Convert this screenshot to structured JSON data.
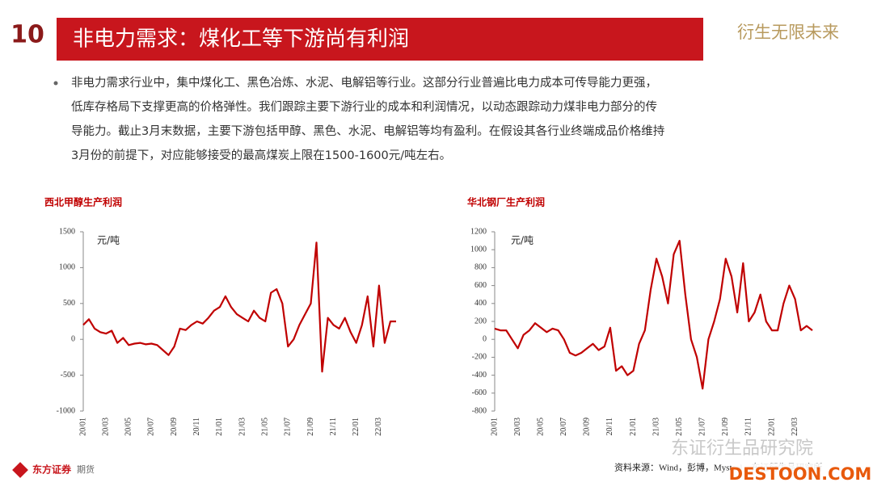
{
  "header": {
    "logo": "10",
    "title": "非电力需求：煤化工等下游尚有利润",
    "slogan": "衍生无限未来"
  },
  "bullet": [
    "非电力需求行业中，集中煤化工、黑色冶炼、水泥、电解铝等行业。这部分行业普遍比电力成本可传导能力更强，",
    "低库存格局下支撑更高的价格弹性。我们跟踪主要下游行业的成本和利润情况，以动态跟踪动力煤非电力部分的传",
    "导能力。截止3月末数据，主要下游包括甲醇、黑色、水泥、电解铝等均有盈利。在假设其各行业终端成品价格维持",
    "3月份的前提下，对应能够接受的最高煤炭上限在1500-1600元/吨左右。"
  ],
  "chart_data": [
    {
      "type": "line",
      "title": "西北甲醇生产利润",
      "unit_label": "元/吨",
      "color": "#c00000",
      "categories": [
        "20/01",
        null,
        null,
        null,
        "20/03",
        null,
        null,
        null,
        "20/05",
        null,
        null,
        null,
        "20/07",
        null,
        null,
        null,
        "20/09",
        null,
        null,
        null,
        "20/11",
        null,
        null,
        null,
        "21/01",
        null,
        null,
        null,
        "21/03",
        null,
        null,
        null,
        "21/05",
        null,
        null,
        null,
        "21/07",
        null,
        null,
        null,
        "21/09",
        null,
        null,
        null,
        "21/11",
        null,
        null,
        null,
        "22/01",
        null,
        null,
        null,
        "22/03",
        null,
        null,
        null
      ],
      "values": [
        200,
        280,
        150,
        100,
        80,
        120,
        -50,
        20,
        -80,
        -60,
        -50,
        -70,
        -60,
        -80,
        -150,
        -220,
        -100,
        150,
        130,
        200,
        250,
        220,
        300,
        400,
        450,
        600,
        450,
        350,
        300,
        250,
        400,
        300,
        250,
        650,
        700,
        500,
        -100,
        0,
        200,
        350,
        500,
        1350,
        -450,
        300,
        200,
        150,
        300,
        100,
        -50,
        200,
        600,
        -100,
        750,
        -50,
        250,
        250
      ],
      "ylim": [
        -1000,
        1500
      ],
      "yticks": [
        -1000,
        -500,
        0,
        500,
        1000,
        1500
      ]
    },
    {
      "type": "line",
      "title": "华北钢厂生产利润",
      "unit_label": "元/吨",
      "color": "#c00000",
      "categories": [
        "20/01",
        null,
        null,
        null,
        "20/03",
        null,
        null,
        null,
        "20/05",
        null,
        null,
        null,
        "20/07",
        null,
        null,
        null,
        "20/09",
        null,
        null,
        null,
        "20/11",
        null,
        null,
        null,
        "21/01",
        null,
        null,
        null,
        "21/03",
        null,
        null,
        null,
        "21/05",
        null,
        null,
        null,
        "21/07",
        null,
        null,
        null,
        "21/09",
        null,
        null,
        null,
        "21/11",
        null,
        null,
        null,
        "22/01",
        null,
        null,
        null,
        "22/03",
        null,
        null,
        null
      ],
      "values": [
        120,
        100,
        100,
        0,
        -100,
        50,
        100,
        180,
        130,
        80,
        120,
        100,
        0,
        -150,
        -180,
        -150,
        -100,
        -50,
        -120,
        -80,
        130,
        -350,
        -300,
        -400,
        -350,
        -50,
        100,
        550,
        900,
        700,
        400,
        950,
        1100,
        500,
        0,
        -200,
        -550,
        0,
        200,
        450,
        900,
        700,
        300,
        850,
        200,
        300,
        500,
        200,
        100,
        100,
        400,
        600,
        450,
        100,
        150,
        100
      ],
      "ylim": [
        -800,
        1200
      ],
      "yticks": [
        -800,
        -600,
        -400,
        -200,
        0,
        200,
        400,
        600,
        800,
        1000,
        1200
      ]
    }
  ],
  "source": "资料来源：Wind，彭博，Mysteel，东证衍生品研究所",
  "footer": {
    "brand": "东方证券",
    "sub": "期货"
  },
  "watermark": [
    "东证衍生品研究院",
    "DESTOON.COM"
  ]
}
